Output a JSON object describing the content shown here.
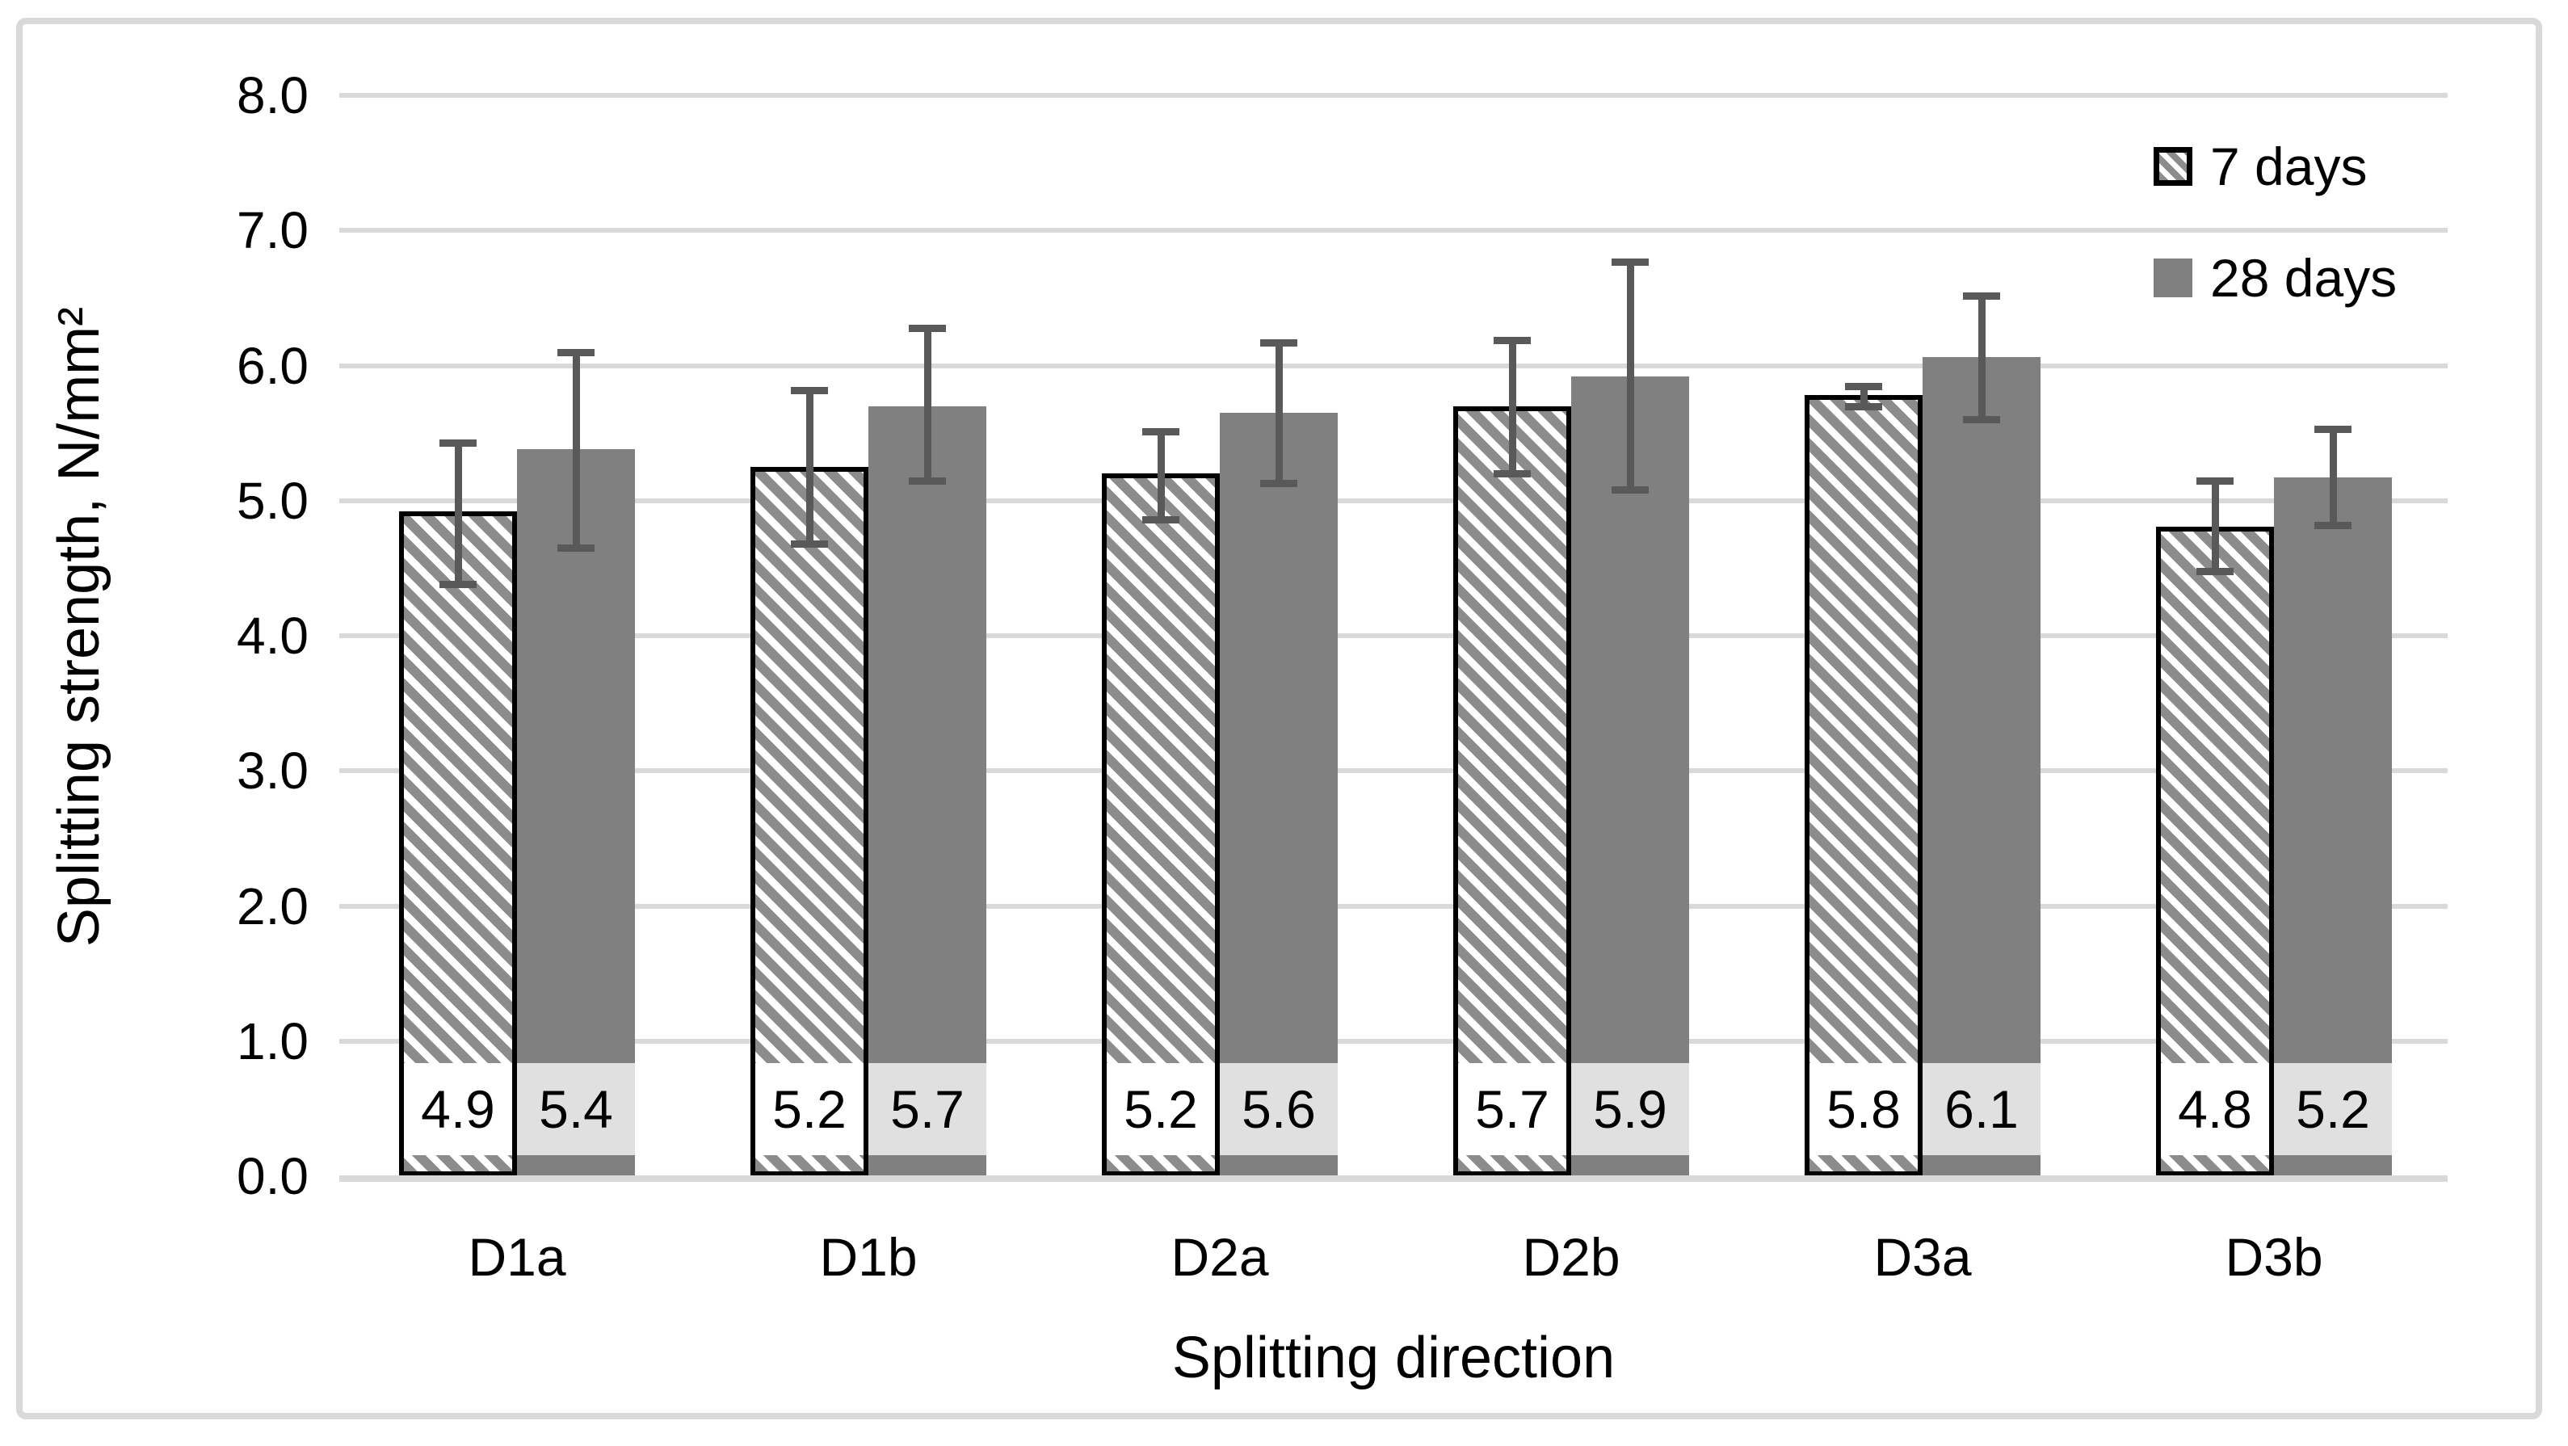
{
  "chart_data": {
    "type": "bar",
    "title": "",
    "xlabel": "Splitting direction",
    "ylabel": "Splitting strength, N/mm²",
    "categories": [
      "D1a",
      "D1b",
      "D2a",
      "D2b",
      "D3a",
      "D3b"
    ],
    "series": [
      {
        "name": "7 days",
        "pattern": "diagonal-hatch",
        "values": [
          4.9,
          5.2,
          5.2,
          5.7,
          5.8,
          4.8
        ],
        "labels": [
          "4.9",
          "5.2",
          "5.2",
          "5.7",
          "5.8",
          "4.8"
        ],
        "bar_heights": [
          4.92,
          5.25,
          5.2,
          5.7,
          5.78,
          4.81
        ],
        "error_low": [
          4.38,
          4.68,
          4.86,
          5.2,
          5.7,
          4.48
        ],
        "error_high": [
          5.43,
          5.82,
          5.51,
          6.19,
          5.85,
          5.15
        ]
      },
      {
        "name": "28 days",
        "pattern": "solid",
        "values": [
          5.4,
          5.7,
          5.6,
          5.9,
          6.1,
          5.2
        ],
        "labels": [
          "5.4",
          "5.7",
          "5.6",
          "5.9",
          "6.1",
          "5.2"
        ],
        "bar_heights": [
          5.38,
          5.7,
          5.65,
          5.92,
          6.06,
          5.17
        ],
        "error_low": [
          4.65,
          5.15,
          5.13,
          5.08,
          5.6,
          4.82
        ],
        "error_high": [
          6.1,
          6.28,
          6.17,
          6.77,
          6.52,
          5.53
        ]
      }
    ],
    "ylim": [
      0,
      8
    ],
    "ytick_labels": [
      "0.0",
      "1.0",
      "2.0",
      "3.0",
      "4.0",
      "5.0",
      "6.0",
      "7.0",
      "8.0"
    ],
    "grid": "horizontal",
    "legend_position": "top-right",
    "error_bars": true
  },
  "colors": {
    "background": "#ffffff",
    "frame_border": "#d9d9d9",
    "gridline": "#d9d9d9",
    "axis_line": "#d9d9d9",
    "text": "#000000",
    "series_7_days_fill": "#ffffff",
    "series_7_days_hatch": "#8c8c8c",
    "series_7_days_border": "#000000",
    "series_28_days_fill": "#808080",
    "error_bar": "#595959",
    "data_label_box_7_days": "#ffffff",
    "data_label_box_28_days": "#e0e0e0"
  }
}
